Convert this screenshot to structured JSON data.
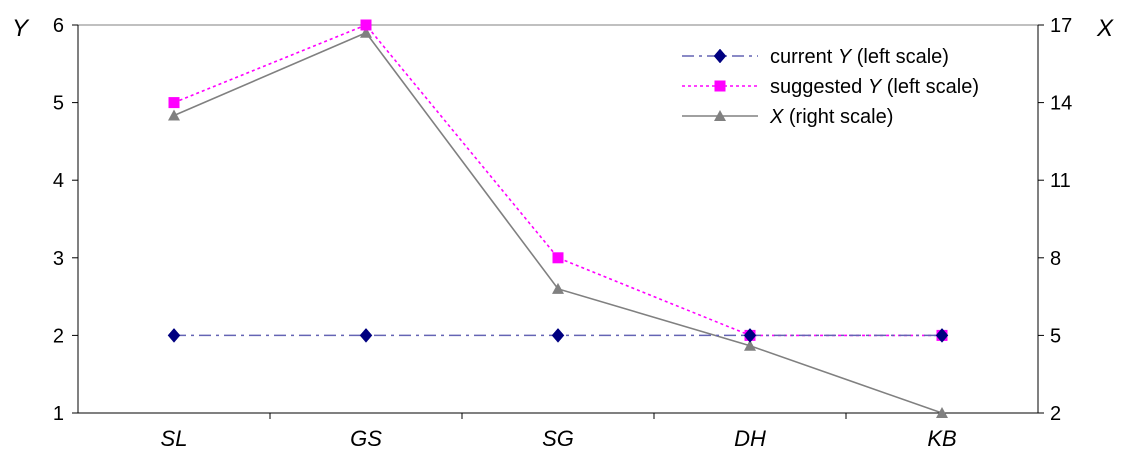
{
  "chart_data": {
    "type": "line",
    "categories": [
      "SL",
      "GS",
      "SG",
      "DH",
      "KB"
    ],
    "y_left": {
      "label": "Y",
      "range": [
        1,
        6
      ],
      "ticks": [
        1,
        2,
        3,
        4,
        5,
        6
      ]
    },
    "y_right": {
      "label": "X",
      "range": [
        2,
        17
      ],
      "ticks": [
        2,
        5,
        8,
        11,
        14,
        17
      ]
    },
    "grid": false,
    "legend_position": "top-right",
    "series": [
      {
        "id": "current",
        "legend_parts": [
          "current ",
          "Y",
          " (left scale)"
        ],
        "axis": "left",
        "values": [
          2,
          2,
          2,
          2,
          2
        ],
        "color": "#000080",
        "line_color": "#6464b4",
        "marker": "diamond",
        "dash": "dash-dot"
      },
      {
        "id": "suggested",
        "legend_parts": [
          "suggested ",
          "Y",
          " (left scale)"
        ],
        "axis": "left",
        "values": [
          5,
          6,
          3,
          2,
          2
        ],
        "color": "#ff00ff",
        "line_color": "#ff00ff",
        "marker": "square",
        "dash": "dotted"
      },
      {
        "id": "x",
        "legend_parts": [
          "",
          "X",
          " (right scale)"
        ],
        "axis": "right",
        "values": [
          13.5,
          16.7,
          6.8,
          4.6,
          2.0
        ],
        "color": "#808080",
        "line_color": "#808080",
        "marker": "triangle",
        "dash": "solid"
      }
    ]
  }
}
